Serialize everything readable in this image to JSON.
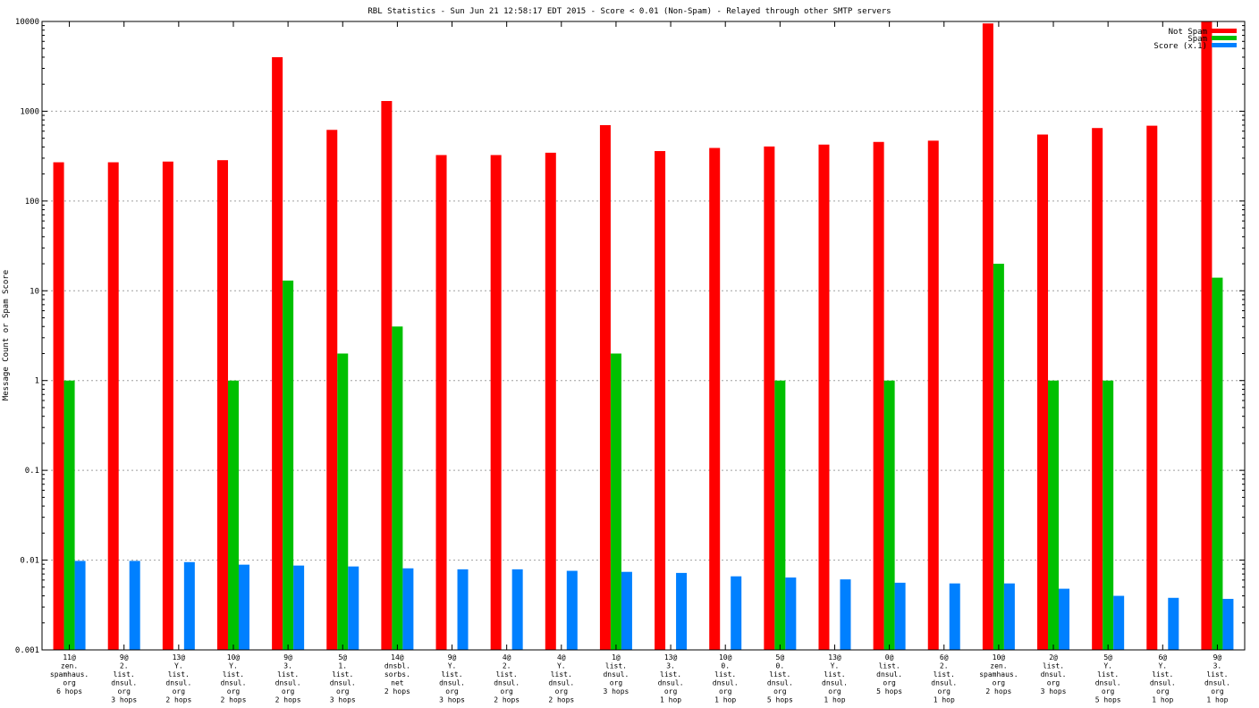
{
  "chart_data": {
    "type": "bar",
    "title": "RBL Statistics - Sun Jun 21 12:58:17 EDT 2015 - Score < 0.01 (Non-Spam) - Relayed through other SMTP servers",
    "xlabel": "",
    "ylabel": "Message Count or Spam Score",
    "yscale": "log",
    "ylim": [
      0.001,
      10000
    ],
    "yticks": [
      "0.001",
      "0.01",
      "0.1",
      "1",
      "10",
      "100",
      "1000",
      "10000"
    ],
    "grid": true,
    "legend_position": "top-right",
    "categories": [
      [
        "11@",
        "zen.",
        "spamhaus.",
        "org",
        "6 hops"
      ],
      [
        "9@",
        "2.",
        "list.",
        "dnsul.",
        "org",
        "3 hops"
      ],
      [
        "13@",
        "Y.",
        "list.",
        "dnsul.",
        "org",
        "2 hops"
      ],
      [
        "10@",
        "Y.",
        "list.",
        "dnsul.",
        "org",
        "2 hops"
      ],
      [
        "9@",
        "3.",
        "list.",
        "dnsul.",
        "org",
        "2 hops"
      ],
      [
        "5@",
        "1.",
        "list.",
        "dnsul.",
        "org",
        "3 hops"
      ],
      [
        "14@",
        "dnsbl.",
        "sorbs.",
        "net",
        "2 hops"
      ],
      [
        "9@",
        "Y.",
        "list.",
        "dnsul.",
        "org",
        "3 hops"
      ],
      [
        "4@",
        "2.",
        "list.",
        "dnsul.",
        "org",
        "2 hops"
      ],
      [
        "4@",
        "Y.",
        "list.",
        "dnsul.",
        "org",
        "2 hops"
      ],
      [
        "1@",
        "list.",
        "dnsul.",
        "org",
        "3 hops"
      ],
      [
        "13@",
        "3.",
        "list.",
        "dnsul.",
        "org",
        "1 hop"
      ],
      [
        "10@",
        "0.",
        "list.",
        "dnsul.",
        "org",
        "1 hop"
      ],
      [
        "5@",
        "0.",
        "list.",
        "dnsul.",
        "org",
        "5 hops"
      ],
      [
        "13@",
        "Y.",
        "list.",
        "dnsul.",
        "org",
        "1 hop"
      ],
      [
        "0@",
        "list.",
        "dnsul.",
        "org",
        "5 hops"
      ],
      [
        "6@",
        "2.",
        "list.",
        "dnsul.",
        "org",
        "1 hop"
      ],
      [
        "10@",
        "zen.",
        "spamhaus.",
        "org",
        "2 hops"
      ],
      [
        "2@",
        "list.",
        "dnsul.",
        "org",
        "3 hops"
      ],
      [
        "5@",
        "Y.",
        "list.",
        "dnsul.",
        "org",
        "5 hops"
      ],
      [
        "6@",
        "Y.",
        "list.",
        "dnsul.",
        "org",
        "1 hop"
      ],
      [
        "9@",
        "3.",
        "list.",
        "dnsul.",
        "org",
        "1 hop"
      ]
    ],
    "series": [
      {
        "name": "Not Spam",
        "color": "#ff0000",
        "values": [
          270,
          270,
          275,
          285,
          4000,
          620,
          1300,
          325,
          325,
          345,
          700,
          360,
          390,
          405,
          425,
          455,
          470,
          9500,
          550,
          650,
          690,
          10000
        ]
      },
      {
        "name": "Spam",
        "color": "#00c000",
        "values": [
          1,
          null,
          null,
          1,
          13,
          2,
          4,
          null,
          null,
          null,
          2,
          null,
          null,
          1,
          null,
          1,
          null,
          20,
          1,
          1,
          null,
          14
        ]
      },
      {
        "name": "Score (x.1)",
        "color": "#0080ff",
        "values": [
          0.0098,
          0.0098,
          0.0095,
          0.0089,
          0.0087,
          0.0085,
          0.0081,
          0.0079,
          0.0079,
          0.0076,
          0.0074,
          0.0072,
          0.0066,
          0.0064,
          0.0061,
          0.0056,
          0.0055,
          0.0055,
          0.0048,
          0.004,
          0.0038,
          0.0037
        ]
      }
    ]
  }
}
